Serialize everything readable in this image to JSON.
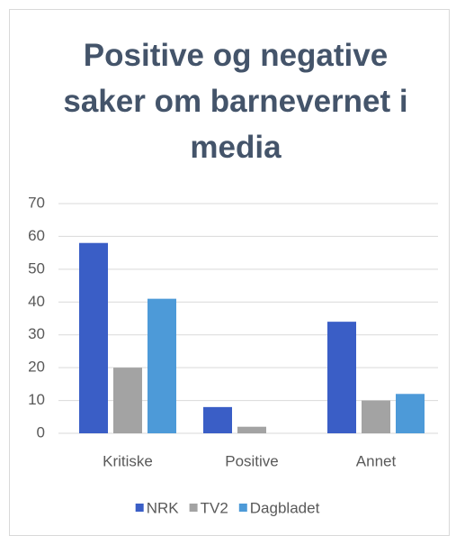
{
  "chart_data": {
    "type": "bar",
    "title": "Positive og negative saker om barnevernet i media",
    "categories": [
      "Kritiske",
      "Positive",
      "Annet"
    ],
    "series": [
      {
        "name": "NRK",
        "color": "#3a5ec6",
        "values": [
          58,
          8,
          34
        ]
      },
      {
        "name": "TV2",
        "color": "#a3a3a3",
        "values": [
          20,
          2,
          10
        ]
      },
      {
        "name": "Dagbladet",
        "color": "#4d9ad8",
        "values": [
          41,
          0,
          12
        ]
      }
    ],
    "ylim": [
      0,
      70
    ],
    "yticks": [
      0,
      10,
      20,
      30,
      40,
      50,
      60,
      70
    ],
    "grid": true,
    "legend": "bottom"
  }
}
